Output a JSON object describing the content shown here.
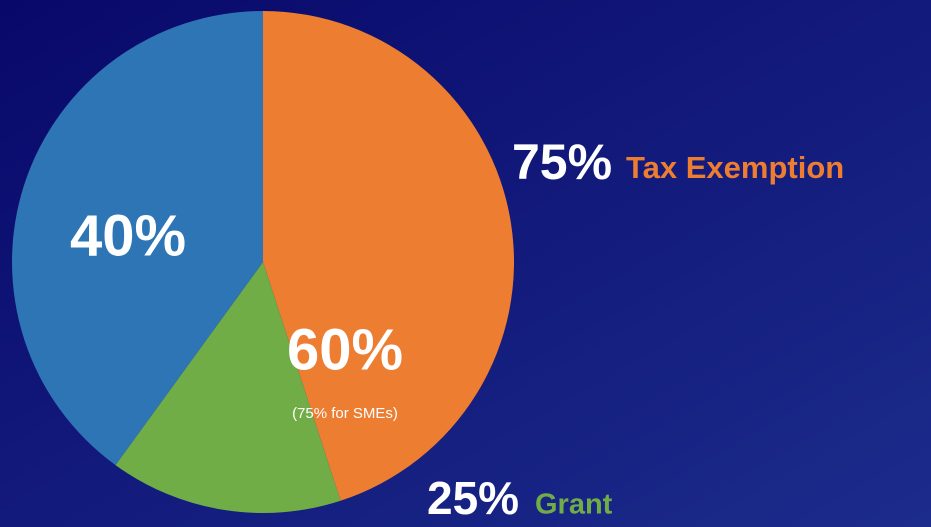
{
  "chart_data": {
    "type": "pie",
    "values": [
      40,
      60
    ],
    "value_labels": [
      "40%",
      "60%"
    ],
    "colors": [
      "#2e75b6",
      null
    ],
    "annotation": "(75% for SMEs)",
    "breakdown": {
      "categories": [
        "Tax Exemption",
        "Grant"
      ],
      "values": [
        75,
        25
      ],
      "value_labels": [
        "75%",
        "25%"
      ],
      "colors": [
        "#ed7d31",
        "#70ad47"
      ]
    }
  }
}
